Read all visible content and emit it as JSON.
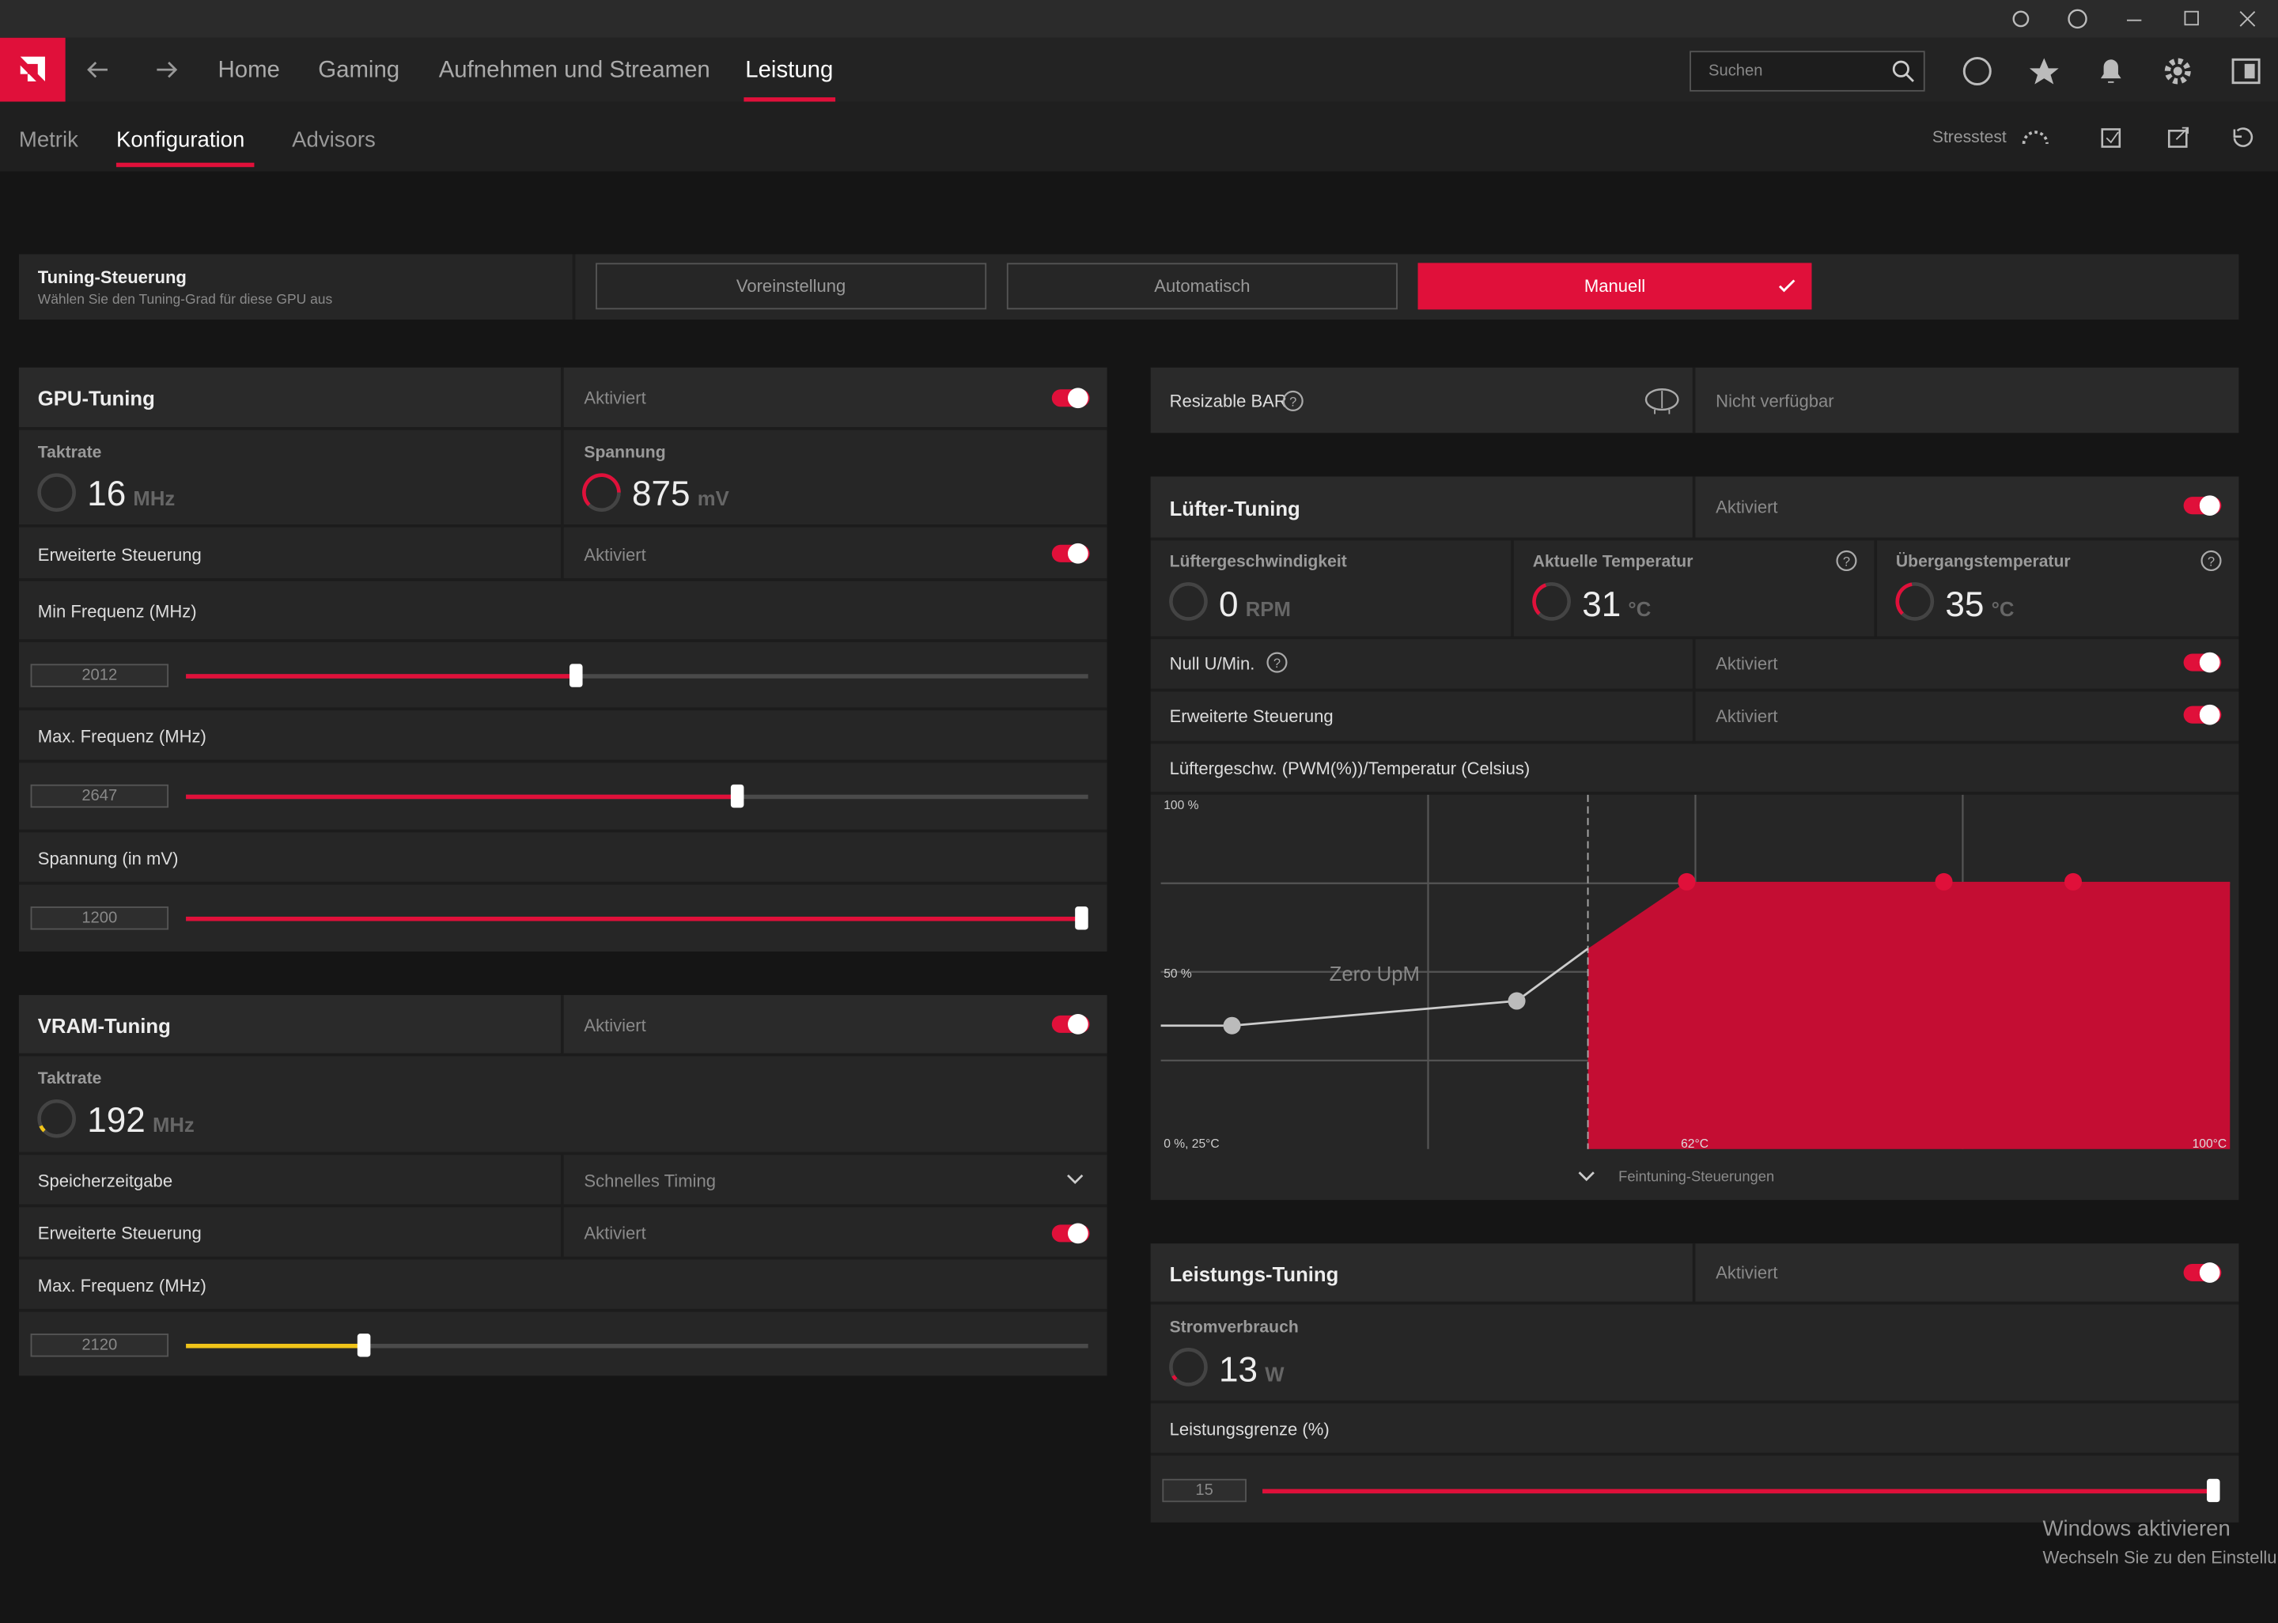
{
  "nav": {
    "tabs": [
      "Home",
      "Gaming",
      "Aufnehmen und Streamen",
      "Leistung"
    ],
    "search_placeholder": "Suchen"
  },
  "subnav": {
    "tabs": [
      "Metrik",
      "Konfiguration",
      "Advisors"
    ],
    "stresstest": "Stresstest"
  },
  "tuning_control": {
    "title": "Tuning-Steuerung",
    "subtitle": "Wählen Sie den Tuning-Grad für diese GPU aus",
    "options": [
      "Voreinstellung",
      "Automatisch",
      "Manuell"
    ]
  },
  "gpu_tuning": {
    "title": "GPU-Tuning",
    "status": "Aktiviert",
    "clock": {
      "label": "Taktrate",
      "value": "16",
      "unit": "MHz"
    },
    "voltage": {
      "label": "Spannung",
      "value": "875",
      "unit": "mV"
    },
    "advanced": {
      "label": "Erweiterte Steuerung",
      "status": "Aktiviert"
    },
    "sliders": [
      {
        "label": "Min Frequenz (MHz)",
        "value": "2012"
      },
      {
        "label": "Max. Frequenz (MHz)",
        "value": "2647"
      },
      {
        "label": "Spannung (in mV)",
        "value": "1200"
      }
    ]
  },
  "vram_tuning": {
    "title": "VRAM-Tuning",
    "status": "Aktiviert",
    "clock": {
      "label": "Taktrate",
      "value": "192",
      "unit": "MHz"
    },
    "memory_timing": {
      "label": "Speicherzeitgabe",
      "value": "Schnelles Timing"
    },
    "advanced": {
      "label": "Erweiterte Steuerung",
      "status": "Aktiviert"
    },
    "slider": {
      "label": "Max. Frequenz (MHz)",
      "value": "2120"
    }
  },
  "resizable_bar": {
    "label": "Resizable BAR",
    "status": "Nicht verfügbar"
  },
  "fan_tuning": {
    "title": "Lüfter-Tuning",
    "status": "Aktiviert",
    "metrics": [
      {
        "label": "Lüftergeschwindigkeit",
        "value": "0",
        "unit": "RPM"
      },
      {
        "label": "Aktuelle Temperatur",
        "value": "31",
        "unit": "°C"
      },
      {
        "label": "Übergangstemperatur",
        "value": "35",
        "unit": "°C"
      }
    ],
    "zero_rpm": {
      "label": "Null U/Min.",
      "status": "Aktiviert"
    },
    "advanced": {
      "label": "Erweiterte Steuerung",
      "status": "Aktiviert"
    },
    "curve": {
      "title": "Lüftergeschw. (PWM(%))/Temperatur (Celsius)",
      "y_top": "100 %",
      "y_mid": "50 %",
      "origin": "0 %, 25°C",
      "x_mark": "62°C",
      "x_end": "100°C",
      "zero_label": "Zero UpM"
    },
    "fine_tuning": "Feintuning-Steuerungen"
  },
  "power_tuning": {
    "title": "Leistungs-Tuning",
    "status": "Aktiviert",
    "consumption": {
      "label": "Stromverbrauch",
      "value": "13",
      "unit": "W"
    },
    "slider": {
      "label": "Leistungsgrenze (%)",
      "value": "15"
    }
  },
  "watermark": {
    "title": "Windows aktivieren",
    "subtitle": "Wechseln Sie zu den Einstellung"
  }
}
